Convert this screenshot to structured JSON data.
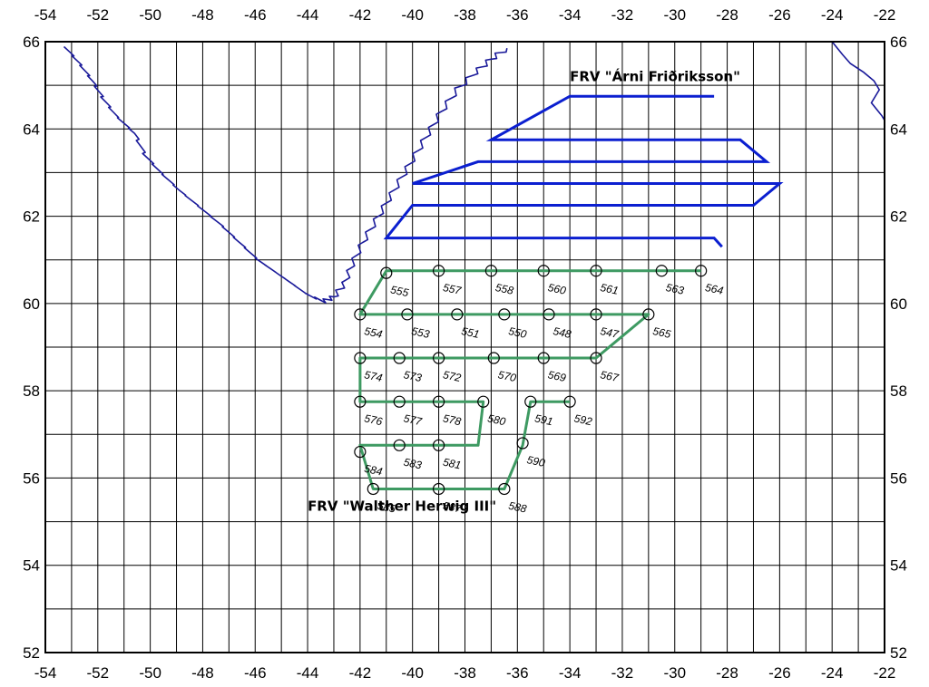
{
  "map": {
    "lon_range": [
      -54,
      -22
    ],
    "lat_range": [
      52,
      66
    ],
    "lon_ticks": [
      "-54",
      "-52",
      "-50",
      "-48",
      "-46",
      "-44",
      "-42",
      "-40",
      "-38",
      "-36",
      "-34",
      "-32",
      "-30",
      "-28",
      "-26",
      "-24",
      "-22"
    ],
    "lat_ticks": [
      "52",
      "54",
      "56",
      "58",
      "60",
      "62",
      "64",
      "66"
    ],
    "grid_lon_step": 1,
    "grid_lat_step": 1,
    "colors": {
      "coast": "#1a1a9a",
      "track_north": "#0b1fd0",
      "track_south": "#3e9a62",
      "grid": "#000000"
    }
  },
  "vessels": [
    {
      "name": "FRV \"Árni Friðriksson\"",
      "track": "blue",
      "label_lon": -34.0,
      "label_lat": 65.1
    },
    {
      "name": "FRV \"Walther Herwig III\"",
      "track": "green",
      "label_lon": -44.0,
      "label_lat": 55.25
    }
  ],
  "tracks": {
    "north": [
      [
        -28.5,
        64.75
      ],
      [
        -34,
        64.75
      ],
      [
        -37,
        63.75
      ],
      [
        -27.5,
        63.75
      ],
      [
        -26.5,
        63.25
      ],
      [
        -37.5,
        63.25
      ],
      [
        -40,
        62.75
      ],
      [
        -26,
        62.75
      ],
      [
        -27,
        62.25
      ],
      [
        -40,
        62.25
      ],
      [
        -41,
        61.5
      ],
      [
        -28.5,
        61.5
      ],
      [
        -28.2,
        61.3
      ]
    ],
    "south": [
      [
        -29,
        60.75
      ],
      [
        -41,
        60.75
      ],
      [
        -42,
        59.75
      ],
      [
        -31,
        59.75
      ],
      [
        -33,
        58.75
      ],
      [
        -42,
        58.75
      ],
      [
        -42,
        57.75
      ],
      [
        -37.3,
        57.75
      ],
      [
        -37.5,
        56.75
      ],
      [
        -42,
        56.75
      ],
      [
        -41.5,
        55.75
      ],
      [
        -36.5,
        55.75
      ],
      [
        -35.8,
        56.75
      ],
      [
        -35.5,
        57.75
      ],
      [
        -34,
        57.75
      ]
    ]
  },
  "stations": [
    {
      "id": "563",
      "lon": -30.5,
      "lat": 60.75
    },
    {
      "id": "564",
      "lon": -29.0,
      "lat": 60.75
    },
    {
      "id": "561",
      "lon": -33.0,
      "lat": 60.75
    },
    {
      "id": "560",
      "lon": -35.0,
      "lat": 60.75
    },
    {
      "id": "558",
      "lon": -37.0,
      "lat": 60.75
    },
    {
      "id": "557",
      "lon": -39.0,
      "lat": 60.75
    },
    {
      "id": "555",
      "lon": -41.0,
      "lat": 60.7
    },
    {
      "id": "554",
      "lon": -42.0,
      "lat": 59.75
    },
    {
      "id": "553",
      "lon": -40.2,
      "lat": 59.75
    },
    {
      "id": "551",
      "lon": -38.3,
      "lat": 59.75
    },
    {
      "id": "550",
      "lon": -36.5,
      "lat": 59.75
    },
    {
      "id": "548",
      "lon": -34.8,
      "lat": 59.75
    },
    {
      "id": "547",
      "lon": -33.0,
      "lat": 59.75
    },
    {
      "id": "565",
      "lon": -31.0,
      "lat": 59.75
    },
    {
      "id": "567",
      "lon": -33.0,
      "lat": 58.75
    },
    {
      "id": "569",
      "lon": -35.0,
      "lat": 58.75
    },
    {
      "id": "570",
      "lon": -36.9,
      "lat": 58.75
    },
    {
      "id": "572",
      "lon": -39.0,
      "lat": 58.75
    },
    {
      "id": "573",
      "lon": -40.5,
      "lat": 58.75
    },
    {
      "id": "574",
      "lon": -42.0,
      "lat": 58.75
    },
    {
      "id": "576",
      "lon": -42.0,
      "lat": 57.75
    },
    {
      "id": "577",
      "lon": -40.5,
      "lat": 57.75
    },
    {
      "id": "578",
      "lon": -39.0,
      "lat": 57.75
    },
    {
      "id": "580",
      "lon": -37.3,
      "lat": 57.75
    },
    {
      "id": "591",
      "lon": -35.5,
      "lat": 57.75
    },
    {
      "id": "592",
      "lon": -34.0,
      "lat": 57.75
    },
    {
      "id": "590",
      "lon": -35.8,
      "lat": 56.8
    },
    {
      "id": "581",
      "lon": -39.0,
      "lat": 56.75
    },
    {
      "id": "583",
      "lon": -40.5,
      "lat": 56.75
    },
    {
      "id": "584",
      "lon": -42.0,
      "lat": 56.6
    },
    {
      "id": "585",
      "lon": -41.5,
      "lat": 55.75
    },
    {
      "id": "587",
      "lon": -39.0,
      "lat": 55.75
    },
    {
      "id": "588",
      "lon": -36.5,
      "lat": 55.75
    }
  ]
}
